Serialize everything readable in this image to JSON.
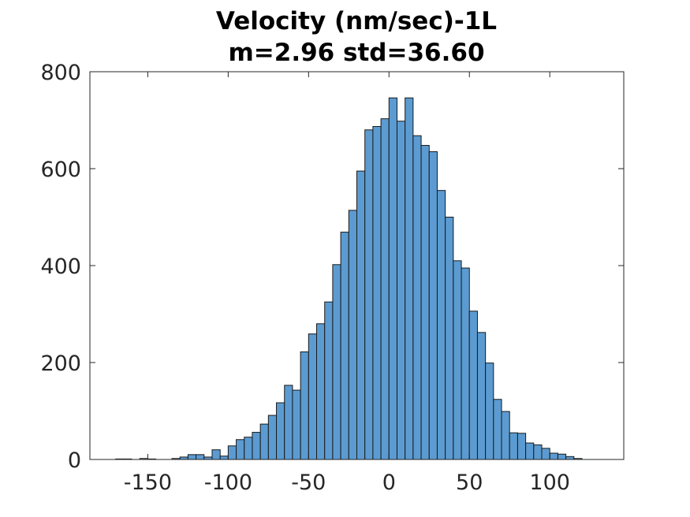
{
  "chart_data": {
    "type": "bar",
    "title": "Velocity (nm/sec)-1L",
    "subtitle": "m=2.96 std=36.60",
    "xlabel": "",
    "ylabel": "",
    "xlim": [
      -186,
      146
    ],
    "ylim": [
      0,
      800
    ],
    "x_ticks": [
      -150,
      -100,
      -50,
      0,
      50,
      100
    ],
    "x_tick_labels": [
      "-150",
      "-100",
      "-50",
      "0",
      "50",
      "100"
    ],
    "y_ticks": [
      0,
      200,
      400,
      600,
      800
    ],
    "y_tick_labels": [
      "0",
      "200",
      "400",
      "600",
      "800"
    ],
    "grid": false,
    "bin_width": 5,
    "bin_start": -170,
    "values": [
      1,
      1,
      0,
      2,
      1,
      0,
      0,
      2,
      5,
      10,
      10,
      5,
      20,
      7,
      28,
      41,
      46,
      56,
      73,
      91,
      117,
      153,
      143,
      222,
      259,
      280,
      325,
      402,
      469,
      514,
      595,
      680,
      687,
      703,
      746,
      698,
      746,
      668,
      648,
      635,
      555,
      500,
      410,
      395,
      306,
      262,
      199,
      124,
      99,
      55,
      54,
      34,
      30,
      23,
      13,
      11,
      6,
      2
    ],
    "colors": {
      "bar_fill": "#5b9bd1",
      "bar_edge": "#1a1a1a",
      "axis": "#262626"
    }
  }
}
